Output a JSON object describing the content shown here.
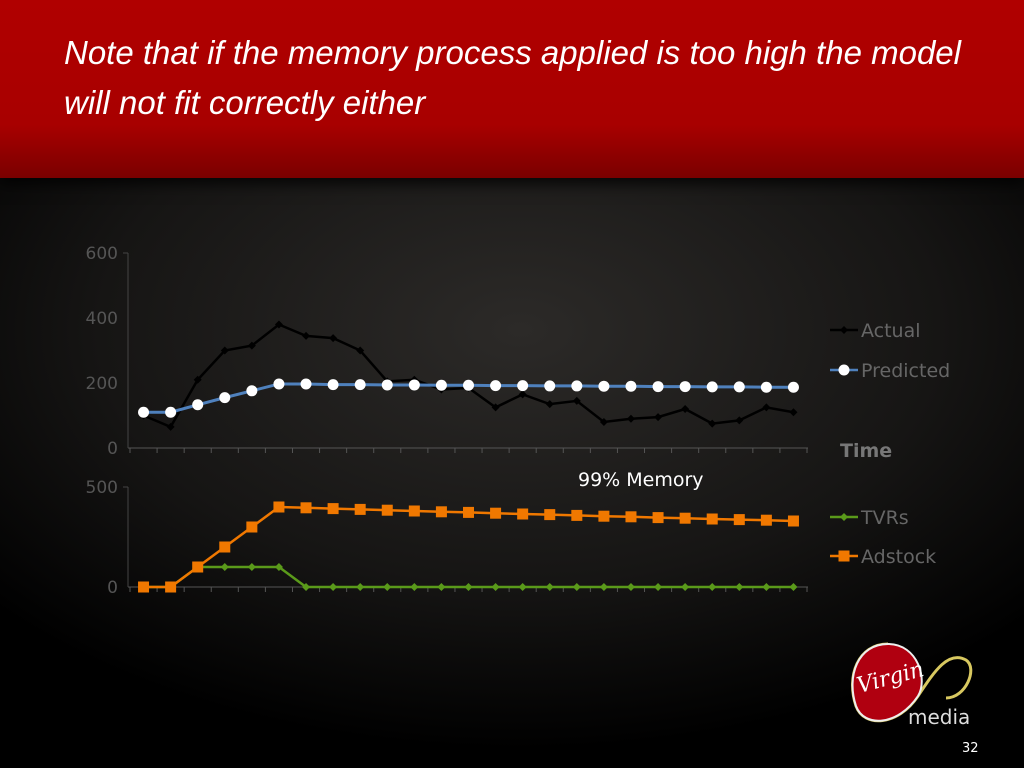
{
  "slide": {
    "title": "Note that if the memory process applied is too high the model will not fit correctly either",
    "page_number": "32",
    "logo_text": "Virgin media"
  },
  "chart_data": [
    {
      "type": "line",
      "ylim": [
        0,
        600
      ],
      "yticks": [
        "0",
        "200",
        "400",
        "600"
      ],
      "xlabel": "Time",
      "legend_position": "right",
      "series": [
        {
          "name": "Actual",
          "color": "#000000",
          "marker": "diamond",
          "values": [
            100,
            65,
            210,
            300,
            315,
            380,
            345,
            338,
            300,
            205,
            210,
            180,
            185,
            125,
            165,
            135,
            145,
            80,
            90,
            95,
            120,
            75,
            85,
            125,
            110
          ]
        },
        {
          "name": "Predicted",
          "color": "#4f81bd",
          "marker": "circle",
          "values": [
            110,
            110,
            133,
            155,
            176,
            197,
            197,
            195,
            195,
            194,
            194,
            193,
            193,
            192,
            192,
            191,
            191,
            190,
            190,
            189,
            189,
            188,
            188,
            187,
            187
          ]
        }
      ]
    },
    {
      "type": "line",
      "ylim": [
        0,
        500
      ],
      "yticks": [
        "0",
        "500"
      ],
      "annotation": "99% Memory",
      "legend_position": "right",
      "series": [
        {
          "name": "TVRs",
          "color": "#5a9a1a",
          "marker": "diamond",
          "values": [
            0,
            0,
            100,
            100,
            100,
            100,
            0,
            0,
            0,
            0,
            0,
            0,
            0,
            0,
            0,
            0,
            0,
            0,
            0,
            0,
            0,
            0,
            0,
            0,
            0
          ]
        },
        {
          "name": "Adstock",
          "color": "#f07800",
          "marker": "square",
          "values": [
            0,
            0,
            100,
            200,
            300,
            400,
            396,
            392,
            388,
            384,
            380,
            376,
            373,
            369,
            365,
            362,
            358,
            354,
            351,
            347,
            344,
            340,
            337,
            334,
            330
          ]
        }
      ]
    }
  ]
}
